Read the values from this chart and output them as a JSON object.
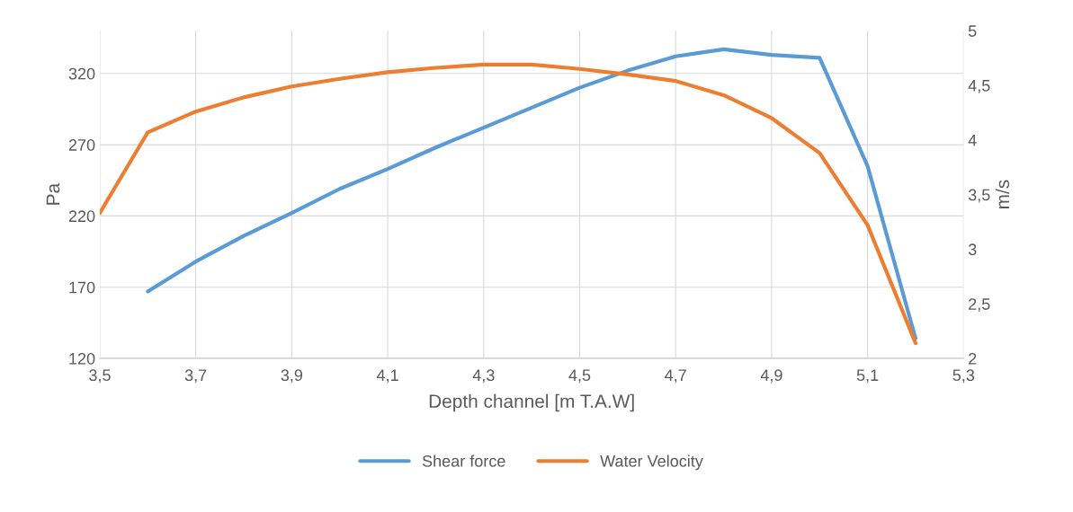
{
  "chart_data": {
    "type": "line",
    "xlabel": "Depth channel [m T.A.W]",
    "ylabel": "Pa",
    "y2label": "m/s",
    "xlim": [
      3.5,
      5.3
    ],
    "xticks": [
      {
        "value": 3.5,
        "label": "3,5"
      },
      {
        "value": 3.7,
        "label": "3,7"
      },
      {
        "value": 3.9,
        "label": "3,9"
      },
      {
        "value": 4.1,
        "label": "4,1"
      },
      {
        "value": 4.3,
        "label": "4,3"
      },
      {
        "value": 4.5,
        "label": "4,5"
      },
      {
        "value": 4.7,
        "label": "4,7"
      },
      {
        "value": 4.9,
        "label": "4,9"
      },
      {
        "value": 5.1,
        "label": "5,1"
      },
      {
        "value": 5.3,
        "label": "5,3"
      }
    ],
    "ylim": [
      120,
      350
    ],
    "yticks": [
      120,
      170,
      220,
      270,
      320
    ],
    "y2lim": [
      2,
      5
    ],
    "y2ticks": [
      2,
      {
        "value": 2.5,
        "label": "2,5"
      },
      3,
      {
        "value": 3.5,
        "label": "3,5"
      },
      4,
      {
        "value": 4.5,
        "label": "4,5"
      },
      5
    ],
    "grid": true,
    "legend": "bottom",
    "marker": "none",
    "line_style": "solid",
    "series": [
      {
        "name": "Shear force",
        "color": "#5b9bd5",
        "x": [
          3.6,
          3.7,
          3.8,
          3.9,
          4.0,
          4.1,
          4.2,
          4.3,
          4.4,
          4.5,
          4.6,
          4.7,
          4.8,
          4.9,
          5.0,
          5.1,
          5.2
        ],
        "values": [
          167,
          188,
          206,
          222,
          239,
          253,
          268,
          282,
          296,
          310,
          322,
          332,
          337,
          333,
          331,
          255,
          134
        ]
      },
      {
        "name": "Water Velocity",
        "color": "#ed7d31",
        "axis": "y2",
        "x": [
          3.5,
          3.6,
          3.7,
          3.8,
          3.9,
          4.0,
          4.1,
          4.2,
          4.3,
          4.4,
          4.5,
          4.6,
          4.7,
          4.8,
          4.9,
          5.0,
          5.1,
          5.2
        ],
        "values": [
          3.33,
          4.07,
          4.26,
          4.39,
          4.49,
          4.56,
          4.62,
          4.66,
          4.69,
          4.69,
          4.65,
          4.6,
          4.54,
          4.41,
          4.2,
          3.88,
          3.22,
          2.14
        ]
      }
    ]
  }
}
